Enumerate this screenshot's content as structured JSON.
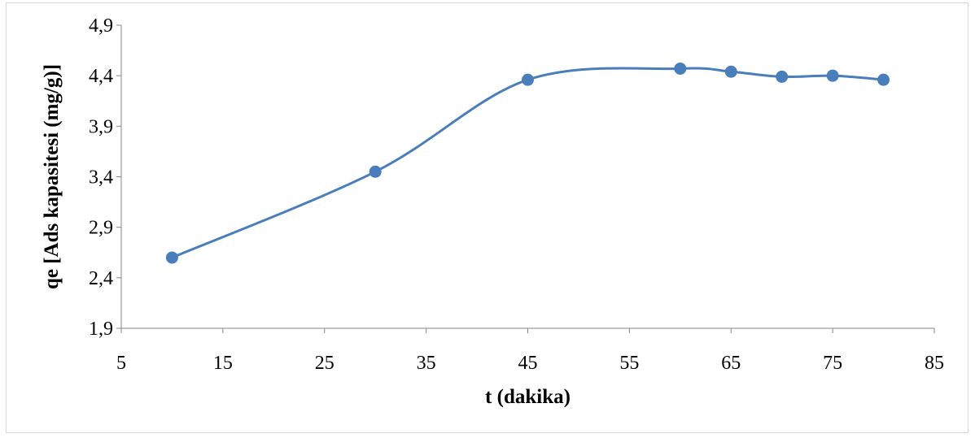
{
  "chart_data": {
    "type": "line",
    "title": "",
    "xlabel": "t (dakika)",
    "ylabel": "qe [Ads kapasitesi (mg/g)]",
    "xlim": [
      5,
      85
    ],
    "ylim": [
      1.9,
      4.9
    ],
    "x_ticks": [
      5,
      15,
      25,
      35,
      45,
      55,
      65,
      75,
      85
    ],
    "x_tick_labels": [
      "5",
      "15",
      "25",
      "35",
      "45",
      "55",
      "65",
      "75",
      "85"
    ],
    "y_ticks": [
      1.9,
      2.4,
      2.9,
      3.4,
      3.9,
      4.4,
      4.9
    ],
    "y_tick_labels": [
      "1,9",
      "2,4",
      "2,9",
      "3,4",
      "3,9",
      "4,4",
      "4,9"
    ],
    "grid": false,
    "legend": "none",
    "smooth": true,
    "series": [
      {
        "x": [
          10,
          30,
          45,
          60,
          65,
          70,
          75,
          80
        ],
        "y": [
          2.6,
          3.45,
          4.36,
          4.47,
          4.44,
          4.39,
          4.4,
          4.36
        ],
        "color": "#4a7ebb"
      }
    ]
  }
}
